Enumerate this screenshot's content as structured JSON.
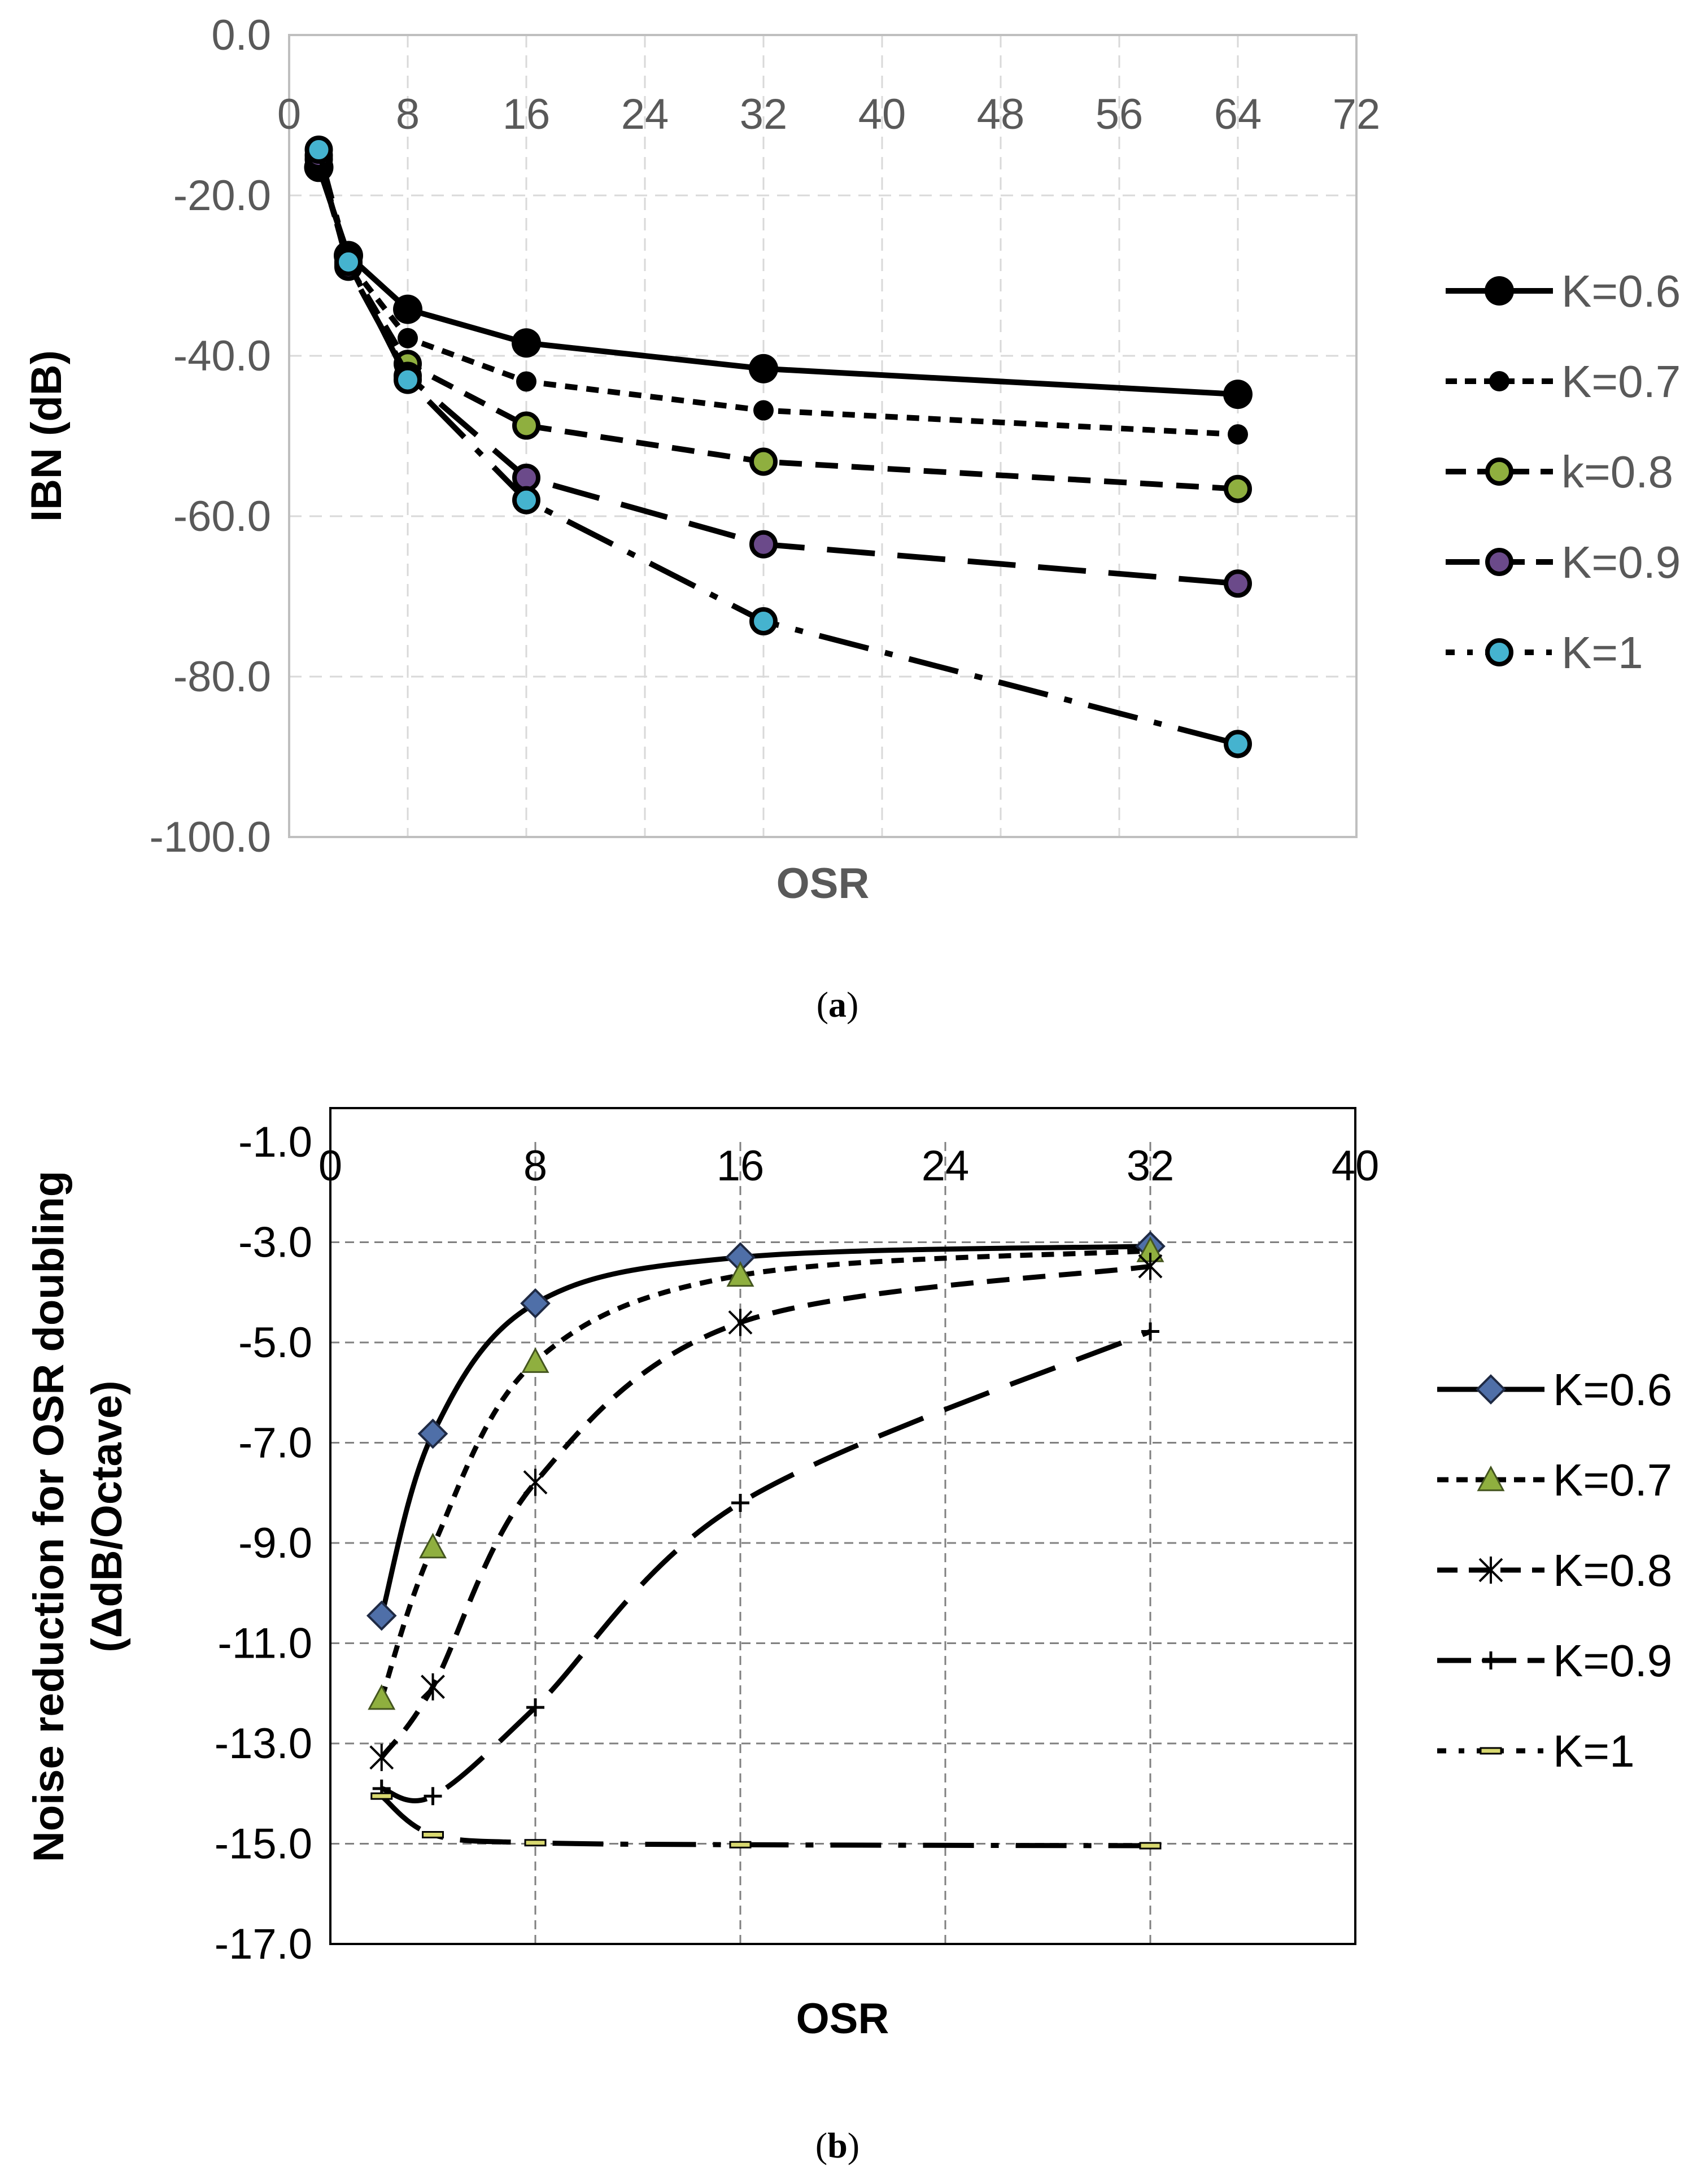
{
  "chart_data": [
    {
      "id": "a",
      "type": "line",
      "caption_open": "(",
      "caption_letter": "a",
      "caption_close": ")",
      "ylabel": "IBN (dB)",
      "xlabel": "OSR",
      "xlim": [
        0,
        72
      ],
      "ylim": [
        -100,
        0
      ],
      "xticks": [
        "0",
        "8",
        "16",
        "24",
        "32",
        "40",
        "48",
        "56",
        "64",
        "72"
      ],
      "yticks": [
        "0.0",
        "-20.0",
        "-40.0",
        "-60.0",
        "-80.0",
        "-100.0"
      ],
      "x_axis_position": "top",
      "legend_position": "right",
      "grid": true,
      "x": [
        2,
        4,
        8,
        16,
        32,
        64
      ],
      "series": [
        {
          "name": "K=0.6",
          "values": [
            -16.5,
            -27.5,
            -34.2,
            -38.4,
            -41.6,
            -44.8
          ],
          "dash": "solid",
          "marker": "circle-large",
          "fill": "#000000"
        },
        {
          "name": "K=0.7",
          "values": [
            -16.0,
            -28.3,
            -37.8,
            -43.2,
            -46.8,
            -49.8
          ],
          "dash": "short",
          "marker": "circle-small",
          "fill": "#000000"
        },
        {
          "name": "k=0.8",
          "values": [
            -15.5,
            -28.6,
            -41.0,
            -48.7,
            -53.2,
            -56.6
          ],
          "dash": "medium",
          "marker": "circle",
          "fill": "#8faf3f"
        },
        {
          "name": "K=0.9",
          "values": [
            -15.0,
            -28.9,
            -42.5,
            -55.2,
            -63.5,
            -68.4
          ],
          "dash": "long",
          "marker": "circle",
          "fill": "#6b4a8a"
        },
        {
          "name": "K=1",
          "values": [
            -14.3,
            -28.3,
            -43.0,
            -58.0,
            -73.1,
            -88.4
          ],
          "dash": "dashdot",
          "marker": "circle",
          "fill": "#45b3cf"
        }
      ]
    },
    {
      "id": "b",
      "type": "line",
      "caption_open": "(",
      "caption_letter": "b",
      "caption_close": ")",
      "ylabel_line1": "Noise reduction for OSR doubling",
      "ylabel_line2": "(ΔdB/Octave)",
      "xlabel": "OSR",
      "xlim": [
        0,
        40
      ],
      "ylim": [
        -17,
        -1
      ],
      "xticks": [
        "0",
        "8",
        "16",
        "24",
        "32",
        "40"
      ],
      "yticks": [
        "-1.0",
        "-3.0",
        "-5.0",
        "-7.0",
        "-9.0",
        "-11.0",
        "-13.0",
        "-15.0",
        "-17.0"
      ],
      "x_axis_position": "top",
      "legend_position": "right",
      "grid": true,
      "x": [
        2,
        4,
        8,
        16,
        32
      ],
      "series": [
        {
          "name": "K=0.6",
          "values": [
            -10.45,
            -6.82,
            -4.22,
            -3.3,
            -3.08
          ],
          "dash": "solid",
          "marker": "diamond",
          "fill": "#4f6fa8"
        },
        {
          "name": "K=0.7",
          "values": [
            -12.1,
            -9.08,
            -5.38,
            -3.66,
            -3.17
          ],
          "dash": "short",
          "marker": "triangle",
          "fill": "#8faf3f"
        },
        {
          "name": "K=0.8",
          "values": [
            -13.28,
            -11.87,
            -7.79,
            -4.6,
            -3.48
          ],
          "dash": "medium",
          "marker": "star",
          "fill": "#000000"
        },
        {
          "name": "K=0.9",
          "values": [
            -13.9,
            -14.05,
            -12.28,
            -8.2,
            -4.78
          ],
          "dash": "long",
          "marker": "plus",
          "fill": "#000000"
        },
        {
          "name": "K=1",
          "values": [
            -14.05,
            -14.82,
            -14.98,
            -15.02,
            -15.04
          ],
          "dash": "dashdot",
          "marker": "dash",
          "fill": "#d8d870"
        }
      ]
    }
  ]
}
